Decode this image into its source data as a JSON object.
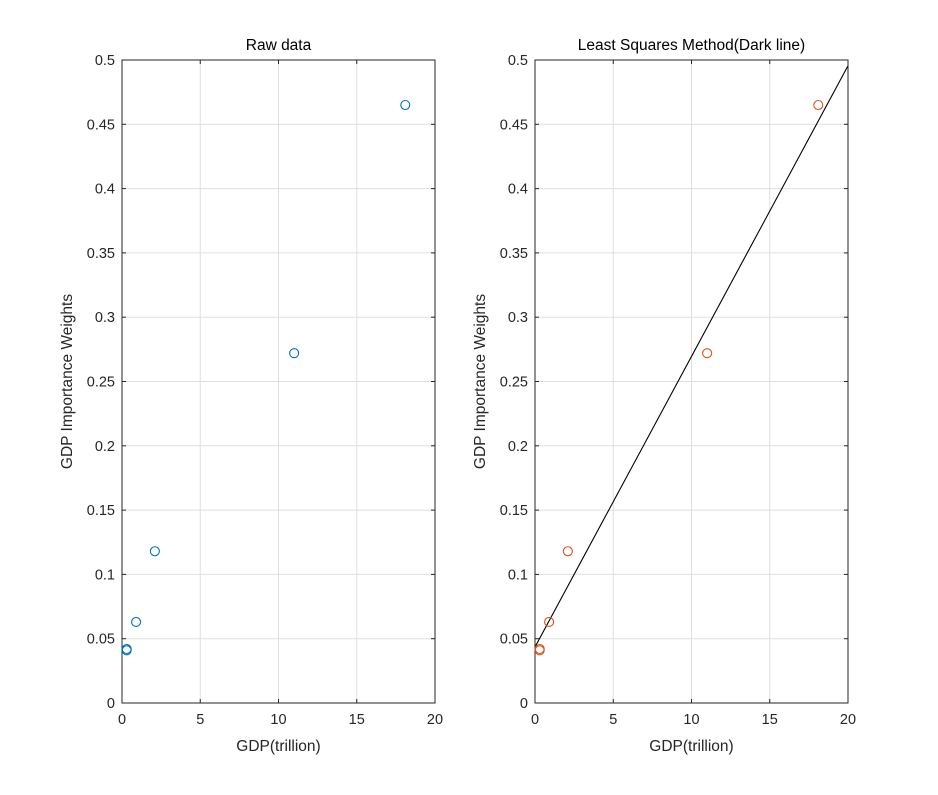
{
  "figure": {
    "background": "#ffffff"
  },
  "chart_data": [
    {
      "type": "scatter",
      "title": "Raw data",
      "xlabel": "GDP(trillion)",
      "ylabel": "GDP Importance Weights",
      "xlim": [
        0,
        20
      ],
      "ylim": [
        0,
        0.5
      ],
      "xticks": [
        0,
        5,
        10,
        15,
        20
      ],
      "xtick_labels": [
        "0",
        "5",
        "10",
        "15",
        "20"
      ],
      "yticks": [
        0,
        0.05,
        0.1,
        0.15,
        0.2,
        0.25,
        0.3,
        0.35,
        0.4,
        0.45,
        0.5
      ],
      "ytick_labels": [
        "0",
        "0.05",
        "0.1",
        "0.15",
        "0.2",
        "0.25",
        "0.3",
        "0.35",
        "0.4",
        "0.45",
        "0.5"
      ],
      "grid": true,
      "marker": "open-circle",
      "series": [
        {
          "color": "#0072bd",
          "x": [
            18.1,
            11.0,
            2.1,
            0.9,
            0.3,
            0.3
          ],
          "y": [
            0.465,
            0.272,
            0.118,
            0.063,
            0.042,
            0.041
          ]
        }
      ]
    },
    {
      "type": "scatter",
      "title": "Least Squares Method(Dark line)",
      "xlabel": "GDP(trillion)",
      "ylabel": "GDP Importance Weights",
      "xlim": [
        0,
        20
      ],
      "ylim": [
        0,
        0.5
      ],
      "xticks": [
        0,
        5,
        10,
        15,
        20
      ],
      "xtick_labels": [
        "0",
        "5",
        "10",
        "15",
        "20"
      ],
      "yticks": [
        0,
        0.05,
        0.1,
        0.15,
        0.2,
        0.25,
        0.3,
        0.35,
        0.4,
        0.45,
        0.5
      ],
      "ytick_labels": [
        "0",
        "0.05",
        "0.1",
        "0.15",
        "0.2",
        "0.25",
        "0.3",
        "0.35",
        "0.4",
        "0.45",
        "0.5"
      ],
      "grid": true,
      "marker": "open-circle",
      "series": [
        {
          "color": "#d95319",
          "x": [
            18.1,
            11.0,
            2.1,
            0.9,
            0.3,
            0.3
          ],
          "y": [
            0.465,
            0.272,
            0.118,
            0.063,
            0.042,
            0.041
          ]
        }
      ],
      "fit_line": {
        "color": "#000000",
        "x": [
          0,
          20
        ],
        "y": [
          0.0435,
          0.4955
        ]
      }
    }
  ]
}
